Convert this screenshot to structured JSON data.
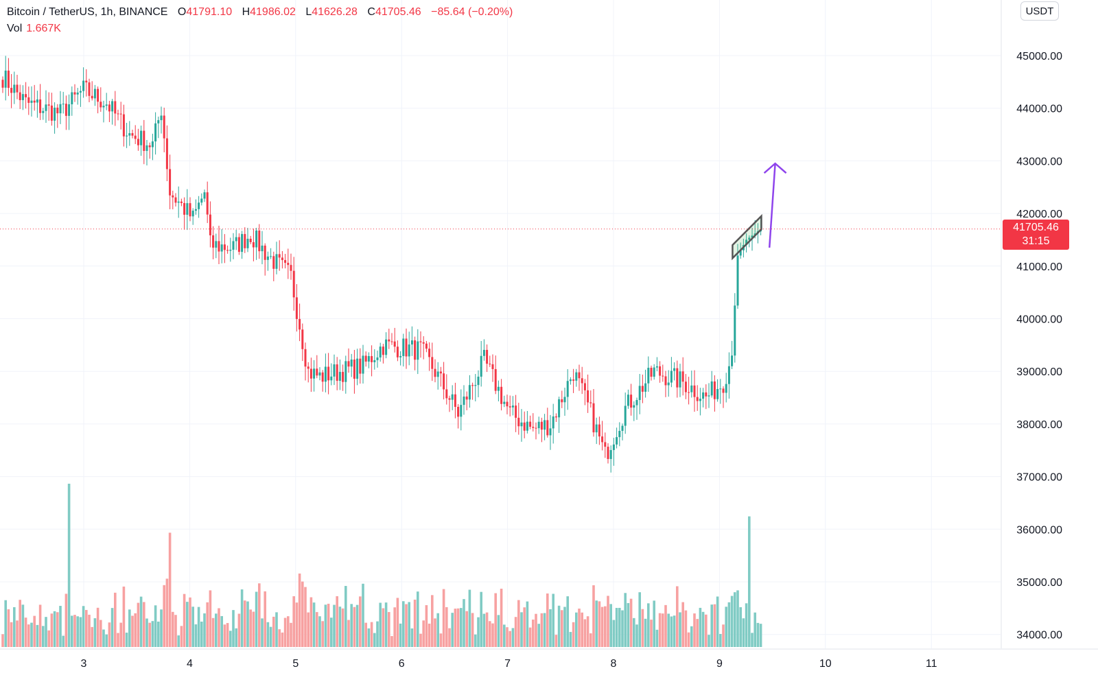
{
  "legend": {
    "symbol": "Bitcoin / TetherUS, 1h, BINANCE",
    "open_label": "O",
    "open": "41791.10",
    "high_label": "H",
    "high": "41986.02",
    "low_label": "L",
    "low": "41626.28",
    "close_label": "C",
    "close": "41705.46",
    "change": "−85.64 (−0.20%)",
    "vol_label": "Vol",
    "vol": "1.667K"
  },
  "currency_button": "USDT",
  "last_price": {
    "value": "41705.46",
    "countdown": "31:15"
  },
  "colors": {
    "up": "#26a69a",
    "down": "#f23645",
    "up_vol": "#80cbc4",
    "down_vol": "#f7a1a1",
    "pattern": "#8e44ec"
  },
  "chart_data": {
    "type": "candlestick",
    "symbol": "Bitcoin / TetherUS",
    "interval": "1h",
    "exchange": "BINANCE",
    "price_axis_ticks": [
      "45000.00",
      "44000.00",
      "43000.00",
      "42000.00",
      "41000.00",
      "40000.00",
      "39000.00",
      "38000.00",
      "37000.00",
      "36000.00",
      "35000.00",
      "34000.00"
    ],
    "price_axis_values": [
      45000,
      44000,
      43000,
      42000,
      41000,
      40000,
      39000,
      38000,
      37000,
      36000,
      35000,
      34000
    ],
    "time_axis_ticks": [
      "3",
      "4",
      "5",
      "6",
      "7",
      "8",
      "9",
      "10",
      "11"
    ],
    "ylim": [
      33700,
      46000
    ],
    "close_anchors": [
      [
        0,
        44600
      ],
      [
        8,
        44100
      ],
      [
        20,
        43900
      ],
      [
        28,
        44350
      ],
      [
        36,
        44100
      ],
      [
        44,
        43500
      ],
      [
        52,
        43300
      ],
      [
        55,
        44000
      ],
      [
        58,
        42400
      ],
      [
        66,
        41900
      ],
      [
        70,
        42400
      ],
      [
        72,
        41400
      ],
      [
        80,
        41350
      ],
      [
        86,
        41600
      ],
      [
        92,
        41200
      ],
      [
        100,
        40800
      ],
      [
        106,
        39000
      ],
      [
        110,
        38900
      ],
      [
        125,
        39100
      ],
      [
        132,
        39500
      ],
      [
        145,
        39400
      ],
      [
        150,
        39000
      ],
      [
        158,
        38200
      ],
      [
        167,
        39200
      ],
      [
        176,
        38200
      ],
      [
        184,
        37900
      ],
      [
        190,
        38000
      ],
      [
        198,
        39000
      ],
      [
        204,
        38200
      ],
      [
        209,
        37400
      ],
      [
        216,
        38300
      ],
      [
        226,
        39000
      ],
      [
        236,
        38800
      ],
      [
        244,
        38500
      ],
      [
        250,
        38800
      ],
      [
        253,
        39300
      ],
      [
        255,
        41200
      ],
      [
        258,
        41500
      ],
      [
        263,
        41700
      ]
    ],
    "volume_scale_note": "volume bars in lower pane, relative heights",
    "volume_spikes": [
      [
        23,
        1.0
      ],
      [
        58,
        0.7
      ],
      [
        103,
        0.45
      ],
      [
        259,
        0.8
      ]
    ],
    "last_close": 41705.46,
    "annotations": {
      "pattern": "bull flag channel",
      "channel": [
        [
          253.2,
          41400
        ],
        [
          263.2,
          41950
        ],
        [
          263.2,
          41700
        ],
        [
          253.2,
          41150
        ]
      ],
      "arrow": {
        "from": [
          266,
          41350
        ],
        "to": [
          268,
          42950
        ]
      }
    }
  }
}
